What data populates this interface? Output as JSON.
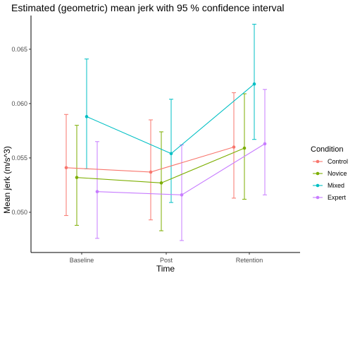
{
  "chart_data": {
    "type": "line",
    "title": "Estimated (geometric) mean jerk with 95 % confidence interval",
    "xlabel": "Time",
    "ylabel": "Mean jerk (m/s^3)",
    "categories": [
      "Baseline",
      "Post",
      "Retention"
    ],
    "ylim": [
      0.0463,
      0.0681
    ],
    "yticks": [
      "0.050",
      "0.055",
      "0.060",
      "0.065"
    ],
    "legend_title": "Condition",
    "legend_position": "right",
    "grid": false,
    "error_bars": "95% confidence interval",
    "series": [
      {
        "name": "Control",
        "color": "#F8766D",
        "values": [
          0.0541,
          0.0537,
          0.056
        ],
        "lower": [
          0.0497,
          0.0493,
          0.0513
        ],
        "upper": [
          0.059,
          0.0585,
          0.061
        ]
      },
      {
        "name": "Novice",
        "color": "#7CAE00",
        "values": [
          0.0532,
          0.0527,
          0.0559
        ],
        "lower": [
          0.0488,
          0.0483,
          0.0512
        ],
        "upper": [
          0.058,
          0.0574,
          0.0609
        ]
      },
      {
        "name": "Mixed",
        "color": "#00BFC4",
        "values": [
          0.0588,
          0.0554,
          0.0618
        ],
        "lower": [
          0.054,
          0.0509,
          0.0567
        ],
        "upper": [
          0.0641,
          0.0604,
          0.0673
        ]
      },
      {
        "name": "Expert",
        "color": "#C77CFF",
        "values": [
          0.0519,
          0.0516,
          0.0563
        ],
        "lower": [
          0.0476,
          0.0474,
          0.0516
        ],
        "upper": [
          0.0565,
          0.0562,
          0.0613
        ]
      }
    ]
  }
}
